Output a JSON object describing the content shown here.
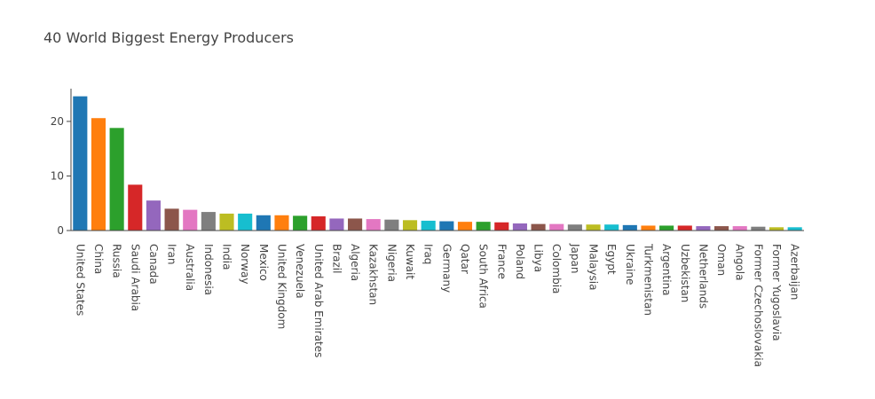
{
  "chart_data": {
    "type": "bar",
    "title": "40 World Biggest Energy Producers",
    "xlabel": "",
    "ylabel": "",
    "ylim": [
      0,
      26
    ],
    "yticks": [
      0,
      10,
      20
    ],
    "grid": false,
    "legend": "none",
    "categories": [
      "United States",
      "China",
      "Russia",
      "Saudi Arabia",
      "Canada",
      "Iran",
      "Australia",
      "Indonesia",
      "India",
      "Norway",
      "Mexico",
      "United Kingdom",
      "Venezuela",
      "United Arab Emirates",
      "Brazil",
      "Algeria",
      "Kazakhstan",
      "Nigeria",
      "Kuwait",
      "Iraq",
      "Germany",
      "Qatar",
      "South Africa",
      "France",
      "Poland",
      "Libya",
      "Colombia",
      "Japan",
      "Malaysia",
      "Egypt",
      "Ukraine",
      "Turkmenistan",
      "Argentina",
      "Uzbekistan",
      "Netherlands",
      "Oman",
      "Angola",
      "Former Czechoslovakia",
      "Former Yugoslavia",
      "Azerbaijan"
    ],
    "values": [
      24.6,
      20.6,
      18.8,
      8.4,
      5.5,
      4.0,
      3.8,
      3.4,
      3.1,
      3.1,
      2.8,
      2.8,
      2.7,
      2.6,
      2.2,
      2.2,
      2.1,
      2.0,
      1.9,
      1.8,
      1.7,
      1.6,
      1.6,
      1.5,
      1.3,
      1.2,
      1.2,
      1.1,
      1.1,
      1.1,
      1.0,
      0.9,
      0.9,
      0.9,
      0.8,
      0.8,
      0.8,
      0.7,
      0.6,
      0.6
    ],
    "colors": [
      "#1f77b4",
      "#ff7f0e",
      "#2ca02c",
      "#d62728",
      "#9467bd",
      "#8c564b",
      "#e377c2",
      "#7f7f7f",
      "#bcbd22",
      "#17becf"
    ]
  }
}
